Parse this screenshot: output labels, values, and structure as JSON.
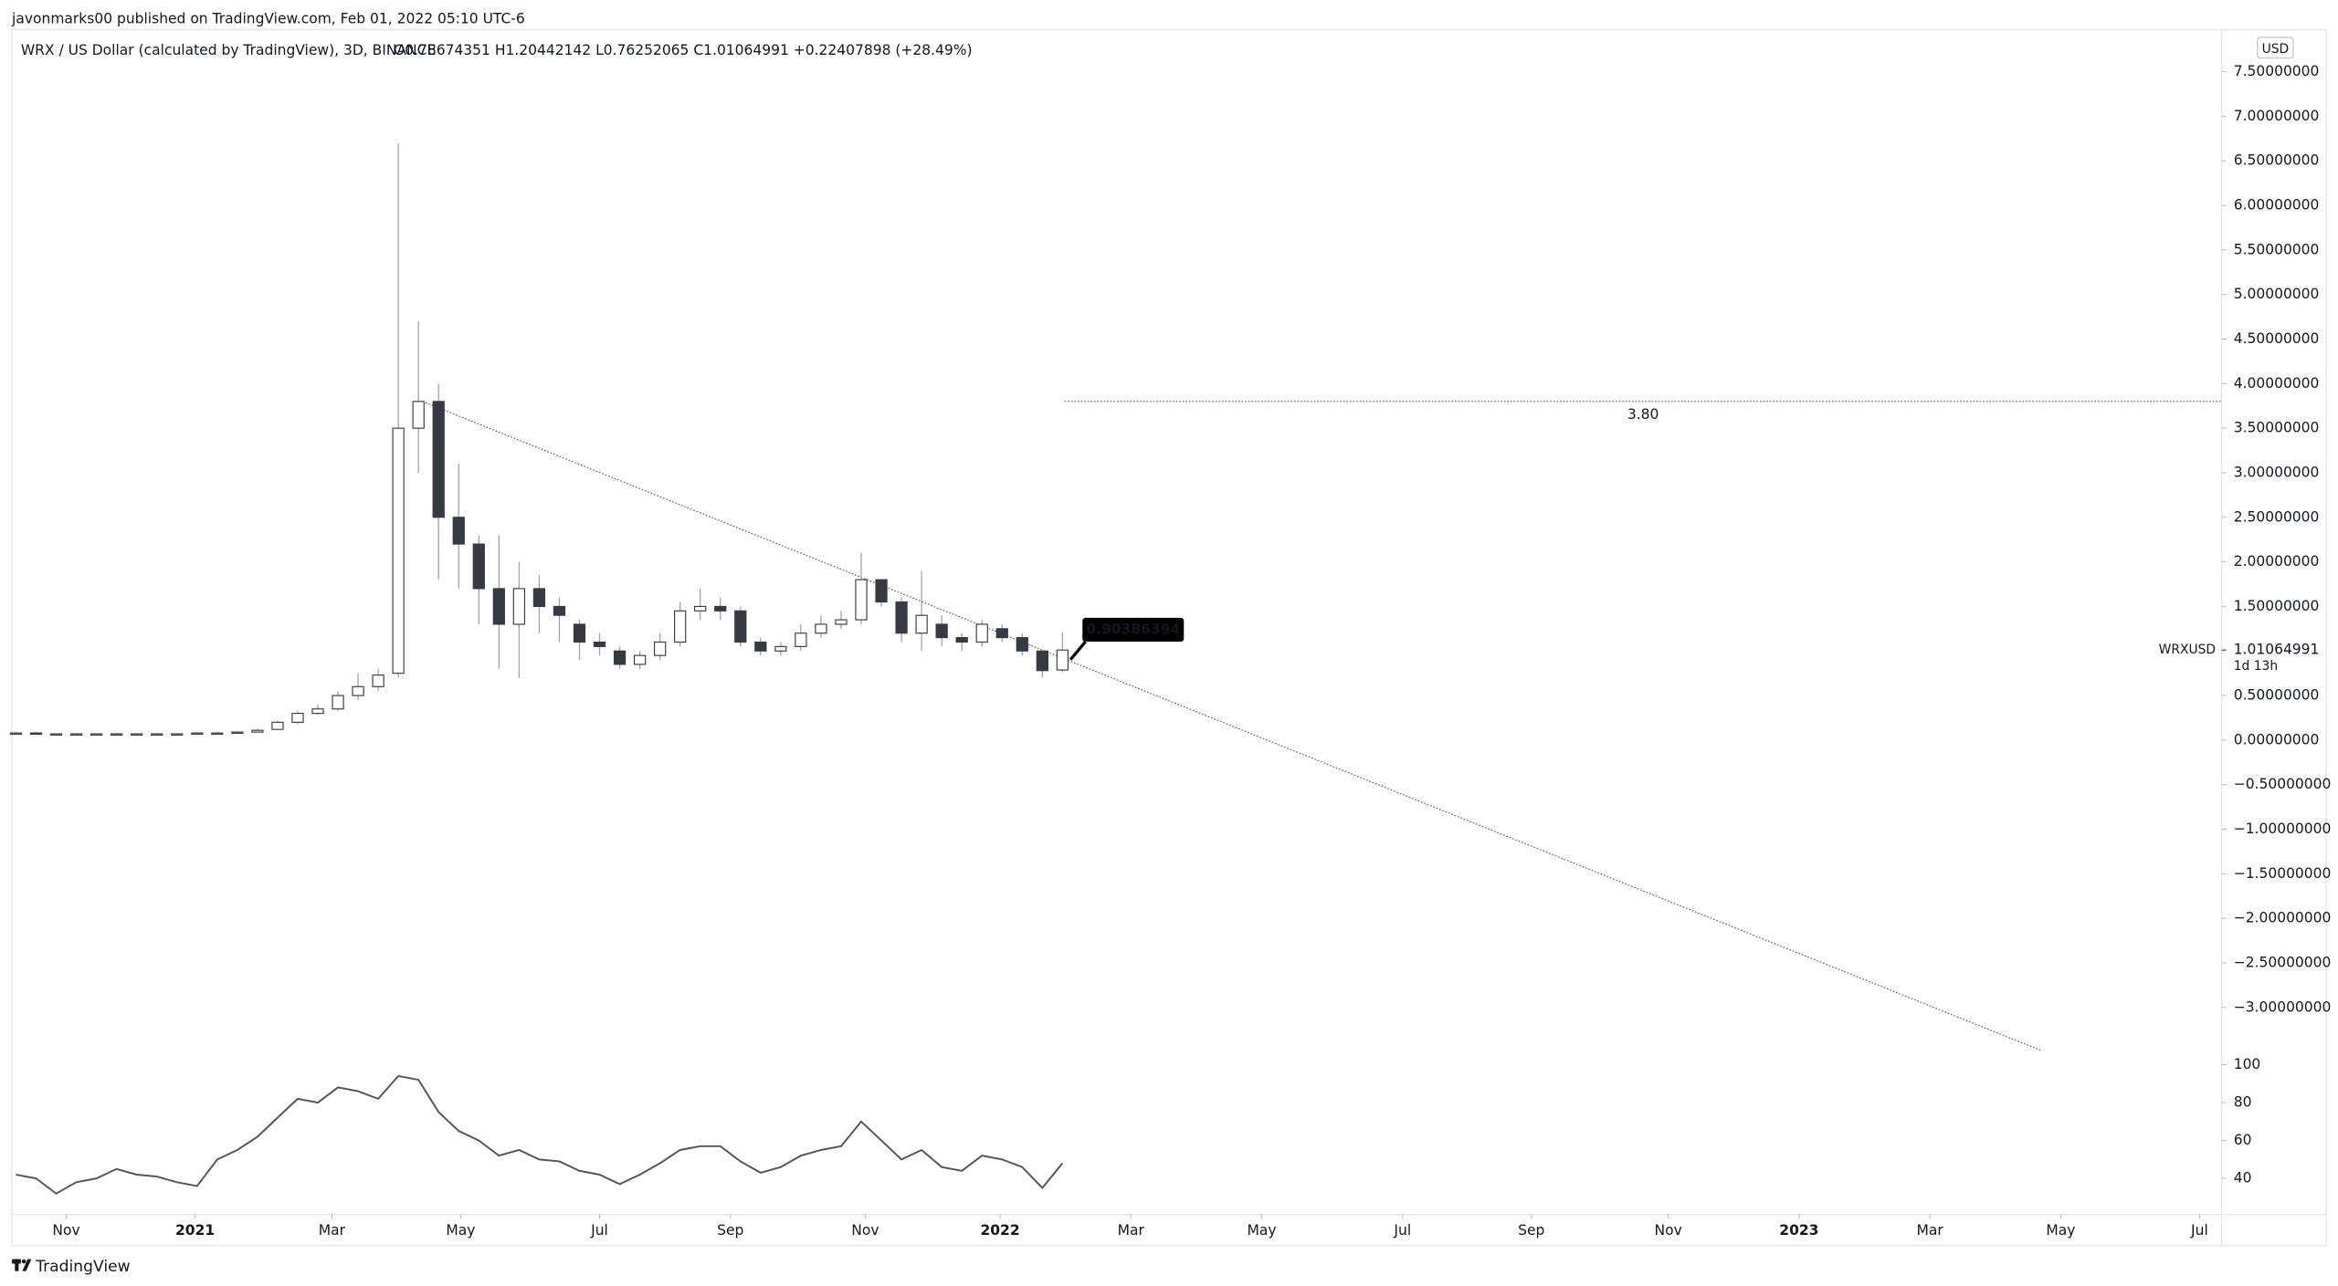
{
  "header": {
    "published": "javonmarks00 published on TradingView.com, Feb 01, 2022 05:10 UTC-6",
    "symbol": "WRX / US Dollar (calculated by TradingView), 3D, BINANCE",
    "ohlc": "O0.78674351 H1.20442142 L0.76252065 C1.01064991 +0.22407898 (+28.49%)",
    "currency": "USD"
  },
  "footer": {
    "brand": "TradingView"
  },
  "chart_data": [
    {
      "type": "candlestick",
      "x": [
        0,
        1,
        2,
        3,
        4,
        5,
        6,
        7,
        8,
        9,
        10,
        11,
        12,
        13,
        14,
        15,
        16,
        17,
        18,
        19,
        20,
        21,
        22,
        23,
        24,
        25,
        26,
        27,
        28,
        29,
        30,
        31,
        32,
        33,
        34,
        35,
        36,
        37,
        38,
        39,
        40,
        41,
        42,
        43,
        44,
        45,
        46,
        47,
        48,
        49,
        50,
        51,
        52
      ],
      "open": [
        0.08,
        0.08,
        0.07,
        0.07,
        0.07,
        0.07,
        0.07,
        0.07,
        0.07,
        0.07,
        0.08,
        0.08,
        0.09,
        0.12,
        0.2,
        0.3,
        0.35,
        0.5,
        0.6,
        0.75,
        3.5,
        3.8,
        2.5,
        2.2,
        1.7,
        1.3,
        1.7,
        1.5,
        1.3,
        1.1,
        1.0,
        0.85,
        0.95,
        1.1,
        1.45,
        1.5,
        1.45,
        1.1,
        1.0,
        1.05,
        1.2,
        1.3,
        1.35,
        1.8,
        1.55,
        1.2,
        1.3,
        1.15,
        1.1,
        1.25,
        1.15,
        1.0,
        0.78674351
      ],
      "high": [
        0.09,
        0.09,
        0.08,
        0.08,
        0.08,
        0.08,
        0.08,
        0.08,
        0.08,
        0.09,
        0.09,
        0.1,
        0.13,
        0.22,
        0.33,
        0.4,
        0.55,
        0.75,
        0.8,
        6.7,
        4.7,
        4.0,
        3.1,
        2.3,
        2.3,
        2.0,
        1.85,
        1.6,
        1.35,
        1.2,
        1.05,
        1.0,
        1.2,
        1.55,
        1.7,
        1.6,
        1.5,
        1.15,
        1.1,
        1.3,
        1.4,
        1.45,
        2.1,
        1.8,
        1.6,
        1.9,
        1.4,
        1.2,
        1.35,
        1.3,
        1.2,
        1.0,
        1.20442142
      ],
      "low": [
        0.07,
        0.06,
        0.06,
        0.06,
        0.06,
        0.06,
        0.06,
        0.06,
        0.06,
        0.07,
        0.07,
        0.08,
        0.09,
        0.11,
        0.18,
        0.28,
        0.33,
        0.45,
        0.55,
        0.7,
        3.0,
        1.8,
        1.7,
        1.3,
        0.8,
        0.7,
        1.2,
        1.1,
        0.9,
        0.95,
        0.8,
        0.8,
        0.9,
        1.05,
        1.35,
        1.35,
        1.05,
        0.95,
        0.95,
        1.0,
        1.15,
        1.25,
        1.3,
        1.5,
        1.1,
        1.0,
        1.05,
        1.0,
        1.05,
        1.1,
        0.95,
        0.7,
        0.76252065
      ],
      "close": [
        0.08,
        0.07,
        0.07,
        0.07,
        0.07,
        0.07,
        0.07,
        0.07,
        0.07,
        0.08,
        0.08,
        0.09,
        0.11,
        0.2,
        0.3,
        0.35,
        0.5,
        0.6,
        0.73,
        3.5,
        3.8,
        2.5,
        2.2,
        1.7,
        1.3,
        1.7,
        1.5,
        1.4,
        1.1,
        1.05,
        0.85,
        0.95,
        1.1,
        1.45,
        1.5,
        1.45,
        1.1,
        1.0,
        1.05,
        1.2,
        1.3,
        1.35,
        1.8,
        1.55,
        1.2,
        1.4,
        1.15,
        1.1,
        1.3,
        1.15,
        1.0,
        0.78,
        1.01064991
      ],
      "up_color": "#ffffff",
      "down_color": "#363a45",
      "xlim": [
        -0.2,
        109.6
      ],
      "xticks": [
        {
          "value": 2.5,
          "label": "Nov"
        },
        {
          "value": 8.9,
          "label": "2021"
        },
        {
          "value": 15.7,
          "label": "Mar"
        },
        {
          "value": 22.1,
          "label": "May"
        },
        {
          "value": 29.0,
          "label": "Jul"
        },
        {
          "value": 35.5,
          "label": "Sep"
        },
        {
          "value": 42.2,
          "label": "Nov"
        },
        {
          "value": 48.9,
          "label": "2022"
        },
        {
          "value": 55.4,
          "label": "Mar"
        },
        {
          "value": 61.9,
          "label": "May"
        },
        {
          "value": 68.9,
          "label": "Jul"
        },
        {
          "value": 75.3,
          "label": "Sep"
        },
        {
          "value": 82.1,
          "label": "Nov"
        },
        {
          "value": 88.6,
          "label": "2023"
        },
        {
          "value": 95.1,
          "label": "Mar"
        },
        {
          "value": 101.6,
          "label": "May"
        },
        {
          "value": 108.5,
          "label": "Jul"
        }
      ],
      "ylim": [
        -3.5,
        7.97
      ],
      "yticks": [
        {
          "value": 7.5,
          "label": "7.50000000"
        },
        {
          "value": 7,
          "label": "7.00000000"
        },
        {
          "value": 6.5,
          "label": "6.50000000"
        },
        {
          "value": 6,
          "label": "6.00000000"
        },
        {
          "value": 5.5,
          "label": "5.50000000"
        },
        {
          "value": 5,
          "label": "5.00000000"
        },
        {
          "value": 4.5,
          "label": "4.50000000"
        },
        {
          "value": 4,
          "label": "4.00000000"
        },
        {
          "value": 3.5,
          "label": "3.50000000"
        },
        {
          "value": 3,
          "label": "3.00000000"
        },
        {
          "value": 2.5,
          "label": "2.50000000"
        },
        {
          "value": 2,
          "label": "2.00000000"
        },
        {
          "value": 1.5,
          "label": "1.50000000"
        },
        {
          "value": 0.5,
          "label": "0.50000000"
        },
        {
          "value": 0,
          "label": "0.00000000"
        },
        {
          "value": -0.5,
          "label": "−0.50000000"
        },
        {
          "value": -1,
          "label": "−1.00000000"
        },
        {
          "value": -1.5,
          "label": "−1.50000000"
        },
        {
          "value": -2,
          "label": "−2.00000000"
        },
        {
          "value": -2.5,
          "label": "−2.50000000"
        },
        {
          "value": -3,
          "label": "−3.00000000"
        }
      ],
      "trendline": {
        "x": [
          20.2,
          100.6
        ],
        "y": [
          3.8,
          -3.48
        ]
      },
      "hline": {
        "value": 3.8,
        "label": "3.80",
        "x_start": 52.1
      },
      "callout": {
        "x": 52.4,
        "value": 0.90386394,
        "label": "0.90386394"
      },
      "last_price": {
        "value": 1.01064991,
        "label": "1.01064991",
        "ticker": "WRXUSD",
        "countdown": "1d 13h"
      }
    },
    {
      "type": "line",
      "x": [
        0,
        1,
        2,
        3,
        4,
        5,
        6,
        7,
        8,
        9,
        10,
        11,
        12,
        13,
        14,
        15,
        16,
        17,
        18,
        19,
        20,
        21,
        22,
        23,
        24,
        25,
        26,
        27,
        28,
        29,
        30,
        31,
        32,
        33,
        34,
        35,
        36,
        37,
        38,
        39,
        40,
        41,
        42,
        43,
        44,
        45,
        46,
        47,
        48,
        49,
        50,
        51,
        52
      ],
      "series": [
        {
          "color": "#555555",
          "values": [
            42,
            40,
            32,
            38,
            40,
            45,
            42,
            41,
            38,
            36,
            50,
            55,
            62,
            72,
            82,
            80,
            88,
            86,
            82,
            94,
            92,
            75,
            65,
            60,
            52,
            55,
            50,
            49,
            44,
            42,
            37,
            42,
            48,
            55,
            57,
            57,
            49,
            43,
            46,
            52,
            55,
            57,
            70,
            60,
            50,
            55,
            46,
            44,
            52,
            50,
            46,
            35,
            48
          ]
        }
      ],
      "xlim": [
        -0.2,
        109.6
      ],
      "ylim": [
        21,
        109
      ],
      "yticks": [
        100,
        80,
        60,
        40
      ]
    }
  ]
}
